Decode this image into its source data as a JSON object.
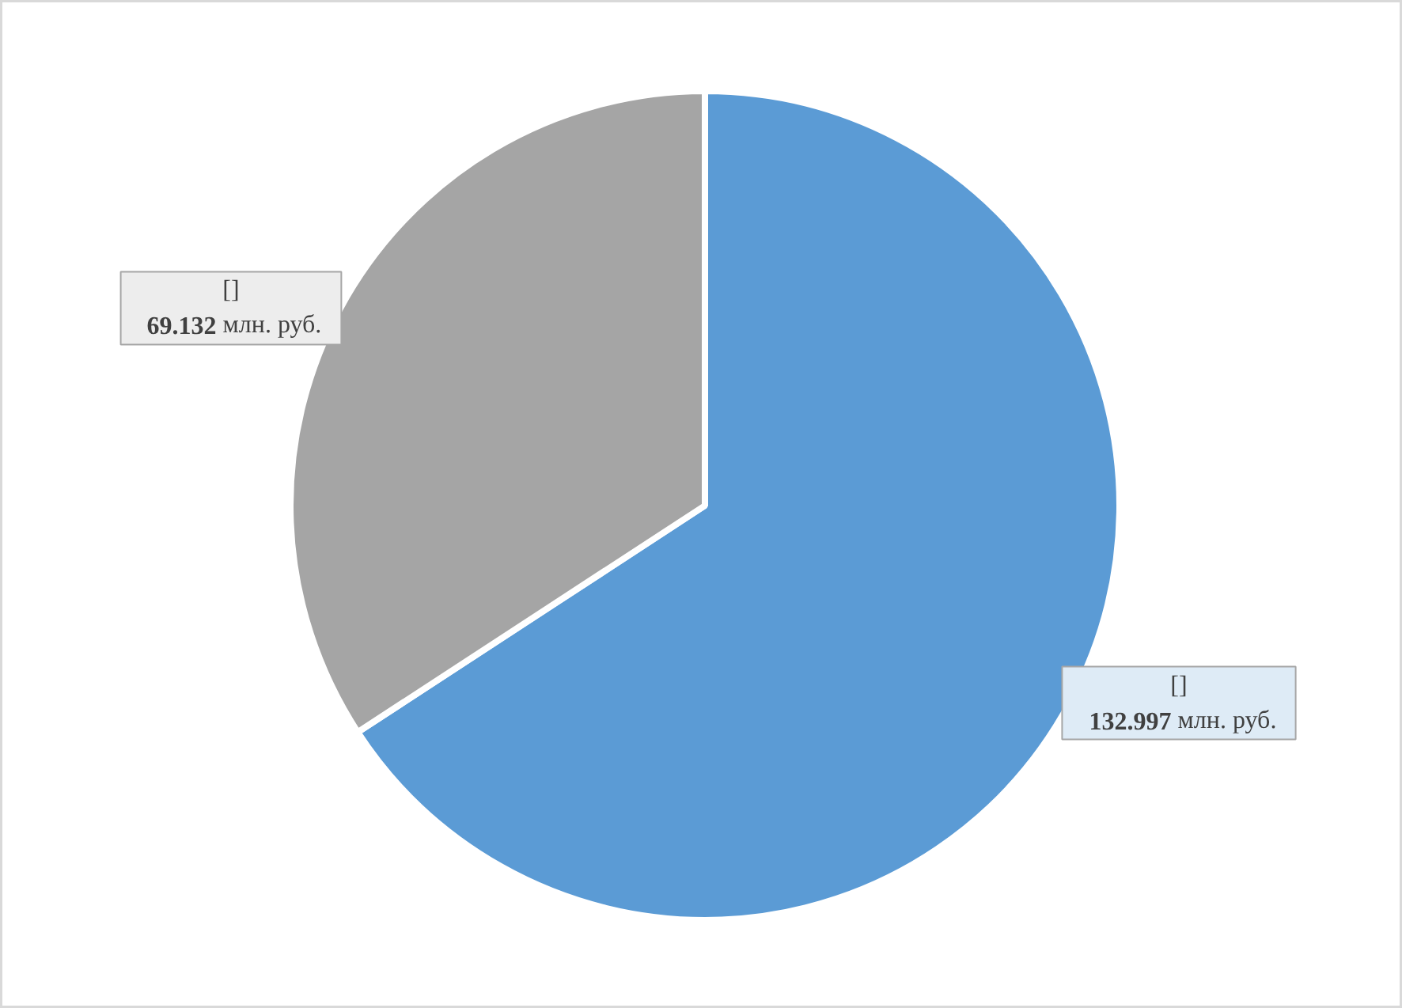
{
  "chart_data": {
    "type": "pie",
    "categories": [
      "[]",
      "[]"
    ],
    "values": [
      132.997,
      69.132
    ],
    "colors": [
      "#5b9bd5",
      "#a5a5a5"
    ],
    "value_labels": [
      "132.997 млн. руб.",
      "69.132 млн. руб."
    ]
  }
}
